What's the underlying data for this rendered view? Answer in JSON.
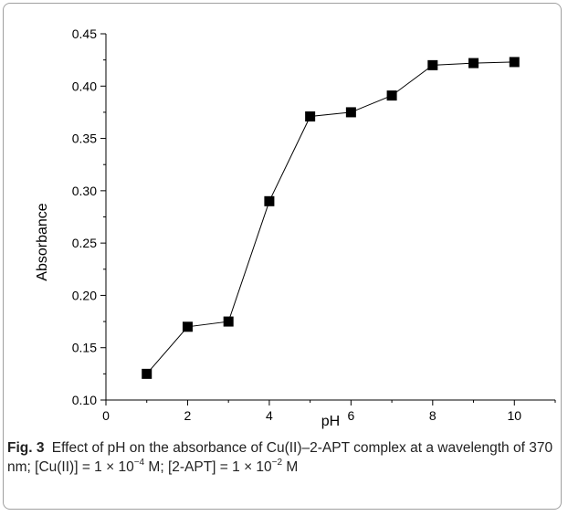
{
  "chart_data": {
    "type": "scatter",
    "xlabel": "pH",
    "ylabel": "Absorbance",
    "xlim": [
      0,
      11
    ],
    "ylim": [
      0.1,
      0.45
    ],
    "xticks": [
      "0",
      "2",
      "4",
      "6",
      "8",
      "10"
    ],
    "xtick_values": [
      0,
      2,
      4,
      6,
      8,
      10
    ],
    "yticks": [
      "0.10",
      "0.15",
      "0.20",
      "0.25",
      "0.30",
      "0.35",
      "0.40",
      "0.45"
    ],
    "ytick_values": [
      0.1,
      0.15,
      0.2,
      0.25,
      0.3,
      0.35,
      0.4,
      0.45
    ],
    "marker": "square",
    "connected": true,
    "color": "#000000",
    "series": [
      {
        "x": [
          1,
          2,
          3,
          4,
          5,
          6,
          7,
          8,
          9,
          10
        ],
        "values": [
          0.125,
          0.17,
          0.175,
          0.29,
          0.371,
          0.375,
          0.391,
          0.42,
          0.422,
          0.423
        ]
      }
    ]
  },
  "caption": {
    "fig_label": "Fig. 3",
    "text_1": "Effect of pH on the absorbance of Cu(II)–2-APT complex at a wavelength of 370 nm; [Cu(II)] = 1 × 10",
    "exp_1": "−4",
    "text_2": " M; [2-APT] = 1 × 10",
    "exp_2": "−2",
    "text_3": " M"
  }
}
